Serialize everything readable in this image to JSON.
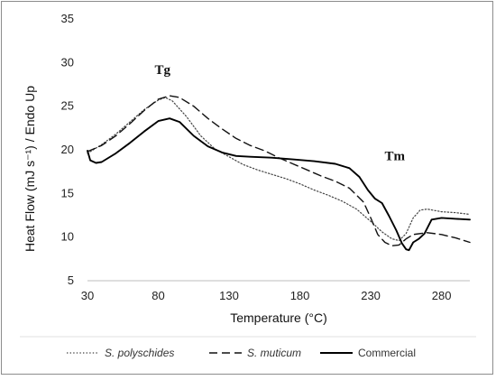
{
  "chart_data": {
    "type": "line",
    "title": "",
    "xlabel": "Temperature (°C)",
    "ylabel": "Heat Flow (mJ s⁻¹) / Endo Up",
    "xlim": [
      30,
      300
    ],
    "ylim": [
      5,
      35
    ],
    "x_ticks": [
      "30",
      "80",
      "130",
      "180",
      "230",
      "280"
    ],
    "y_ticks": [
      "5",
      "10",
      "15",
      "20",
      "25",
      "30",
      "35"
    ],
    "grid": false,
    "legend_position": "bottom",
    "annotations": [
      {
        "text": "Tg",
        "x": 83,
        "y": 28.7
      },
      {
        "text": "Tm",
        "x": 247,
        "y": 18.8
      }
    ],
    "series": [
      {
        "name": "S. polyschides",
        "style": "dotted",
        "color": "#444444",
        "points": [
          [
            30,
            19.6
          ],
          [
            40,
            20.6
          ],
          [
            50,
            21.8
          ],
          [
            60,
            23.2
          ],
          [
            70,
            24.6
          ],
          [
            80,
            25.7
          ],
          [
            85,
            26.0
          ],
          [
            90,
            25.6
          ],
          [
            100,
            23.8
          ],
          [
            110,
            21.6
          ],
          [
            120,
            20.1
          ],
          [
            130,
            19.2
          ],
          [
            140,
            18.3
          ],
          [
            150,
            17.7
          ],
          [
            160,
            17.2
          ],
          [
            170,
            16.7
          ],
          [
            180,
            16.1
          ],
          [
            190,
            15.4
          ],
          [
            200,
            14.8
          ],
          [
            210,
            14.1
          ],
          [
            220,
            13.2
          ],
          [
            230,
            11.8
          ],
          [
            238,
            10.6
          ],
          [
            245,
            9.8
          ],
          [
            250,
            9.6
          ],
          [
            255,
            10.4
          ],
          [
            260,
            12.2
          ],
          [
            265,
            13.1
          ],
          [
            270,
            13.2
          ],
          [
            280,
            12.9
          ],
          [
            290,
            12.8
          ],
          [
            300,
            12.6
          ]
        ]
      },
      {
        "name": "S. muticum",
        "style": "dashed",
        "color": "#111111",
        "points": [
          [
            30,
            19.8
          ],
          [
            40,
            20.5
          ],
          [
            50,
            21.6
          ],
          [
            60,
            23.0
          ],
          [
            70,
            24.5
          ],
          [
            80,
            25.8
          ],
          [
            88,
            26.2
          ],
          [
            95,
            26.0
          ],
          [
            105,
            25.0
          ],
          [
            115,
            23.6
          ],
          [
            125,
            22.4
          ],
          [
            135,
            21.3
          ],
          [
            145,
            20.5
          ],
          [
            155,
            19.9
          ],
          [
            165,
            19.1
          ],
          [
            175,
            18.4
          ],
          [
            185,
            17.7
          ],
          [
            195,
            17.0
          ],
          [
            205,
            16.4
          ],
          [
            215,
            15.6
          ],
          [
            225,
            14.0
          ],
          [
            230,
            12.2
          ],
          [
            235,
            10.3
          ],
          [
            240,
            9.4
          ],
          [
            245,
            9.0
          ],
          [
            250,
            9.1
          ],
          [
            255,
            9.8
          ],
          [
            260,
            10.3
          ],
          [
            270,
            10.5
          ],
          [
            280,
            10.3
          ],
          [
            290,
            9.9
          ],
          [
            300,
            9.4
          ]
        ]
      },
      {
        "name": "Commercial",
        "style": "solid",
        "color": "#000000",
        "points": [
          [
            30,
            19.9
          ],
          [
            32,
            18.8
          ],
          [
            36,
            18.5
          ],
          [
            40,
            18.6
          ],
          [
            50,
            19.6
          ],
          [
            60,
            20.8
          ],
          [
            70,
            22.1
          ],
          [
            80,
            23.3
          ],
          [
            88,
            23.6
          ],
          [
            95,
            23.2
          ],
          [
            105,
            21.6
          ],
          [
            115,
            20.4
          ],
          [
            125,
            19.7
          ],
          [
            135,
            19.3
          ],
          [
            145,
            19.2
          ],
          [
            160,
            19.1
          ],
          [
            175,
            18.9
          ],
          [
            190,
            18.7
          ],
          [
            205,
            18.4
          ],
          [
            215,
            17.9
          ],
          [
            222,
            16.9
          ],
          [
            228,
            15.4
          ],
          [
            233,
            14.4
          ],
          [
            238,
            13.9
          ],
          [
            243,
            12.4
          ],
          [
            248,
            10.8
          ],
          [
            252,
            9.3
          ],
          [
            255,
            8.6
          ],
          [
            257,
            8.5
          ],
          [
            260,
            9.4
          ],
          [
            264,
            9.8
          ],
          [
            268,
            10.4
          ],
          [
            273,
            12.0
          ],
          [
            280,
            12.2
          ],
          [
            290,
            12.1
          ],
          [
            300,
            12.0
          ]
        ]
      }
    ]
  }
}
